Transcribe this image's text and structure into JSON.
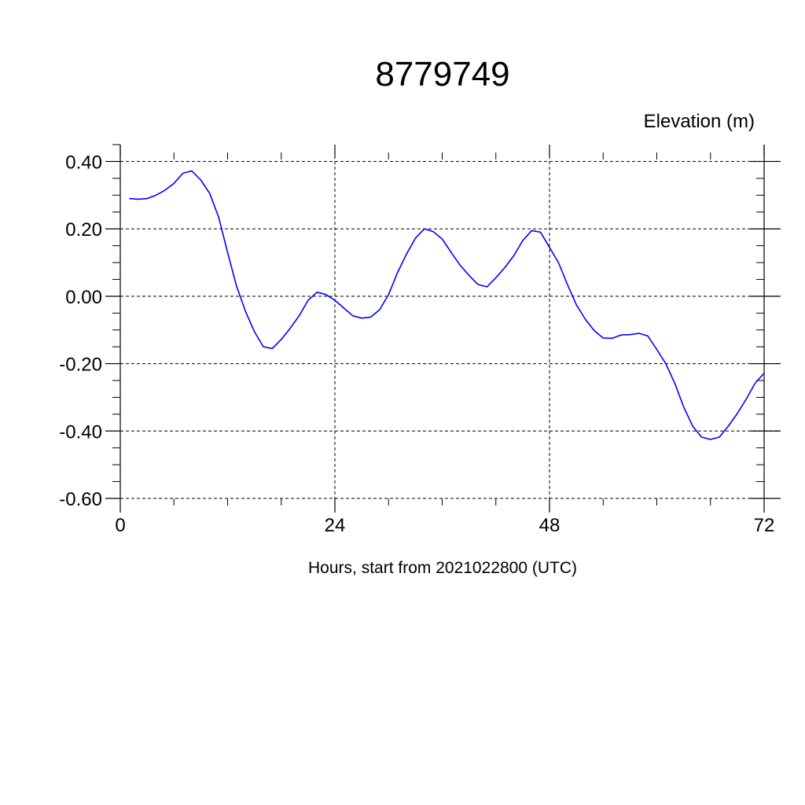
{
  "chart_data": {
    "type": "line",
    "title": "8779749",
    "ylabel": "Elevation (m)",
    "xlabel": "Hours, start from 2021022800 (UTC)",
    "xlim": [
      0,
      72
    ],
    "ylim": [
      -0.6,
      0.45
    ],
    "x_ticks": [
      0,
      24,
      48,
      72
    ],
    "x_tick_labels": [
      "0",
      "24",
      "48",
      "72"
    ],
    "y_ticks": [
      0.4,
      0.2,
      0.0,
      -0.2,
      -0.4,
      -0.6
    ],
    "y_tick_labels": [
      "0.40",
      "0.20",
      "0.00",
      "-0.20",
      "-0.40",
      "-0.60"
    ],
    "grid": true,
    "series": [
      {
        "color": "#0000ff",
        "x": [
          1,
          2,
          3,
          4,
          5,
          6,
          7,
          8,
          9,
          10,
          11,
          12,
          13,
          14,
          15,
          16,
          17,
          18,
          19,
          20,
          21,
          22,
          23,
          24,
          25,
          26,
          27,
          28,
          29,
          30,
          31,
          32,
          33,
          34,
          35,
          36,
          37,
          38,
          39,
          40,
          41,
          42,
          43,
          44,
          45,
          46,
          47,
          48,
          49,
          50,
          51,
          52,
          53,
          54,
          55,
          56,
          57,
          58,
          59,
          60,
          61,
          62,
          63,
          64,
          65,
          66,
          67,
          68,
          69,
          70,
          71,
          72
        ],
        "values": [
          0.29,
          0.288,
          0.29,
          0.3,
          0.315,
          0.335,
          0.365,
          0.372,
          0.345,
          0.305,
          0.235,
          0.13,
          0.03,
          -0.045,
          -0.105,
          -0.15,
          -0.155,
          -0.128,
          -0.095,
          -0.058,
          -0.012,
          0.012,
          0.005,
          -0.012,
          -0.035,
          -0.058,
          -0.065,
          -0.062,
          -0.04,
          0.005,
          0.07,
          0.125,
          0.172,
          0.2,
          0.192,
          0.17,
          0.13,
          0.092,
          0.062,
          0.035,
          0.028,
          0.055,
          0.085,
          0.12,
          0.165,
          0.195,
          0.19,
          0.145,
          0.1,
          0.035,
          -0.025,
          -0.068,
          -0.102,
          -0.124,
          -0.125,
          -0.115,
          -0.114,
          -0.11,
          -0.118,
          -0.158,
          -0.2,
          -0.258,
          -0.328,
          -0.385,
          -0.418,
          -0.425,
          -0.418,
          -0.385,
          -0.348,
          -0.305,
          -0.258,
          -0.228
        ]
      }
    ]
  }
}
